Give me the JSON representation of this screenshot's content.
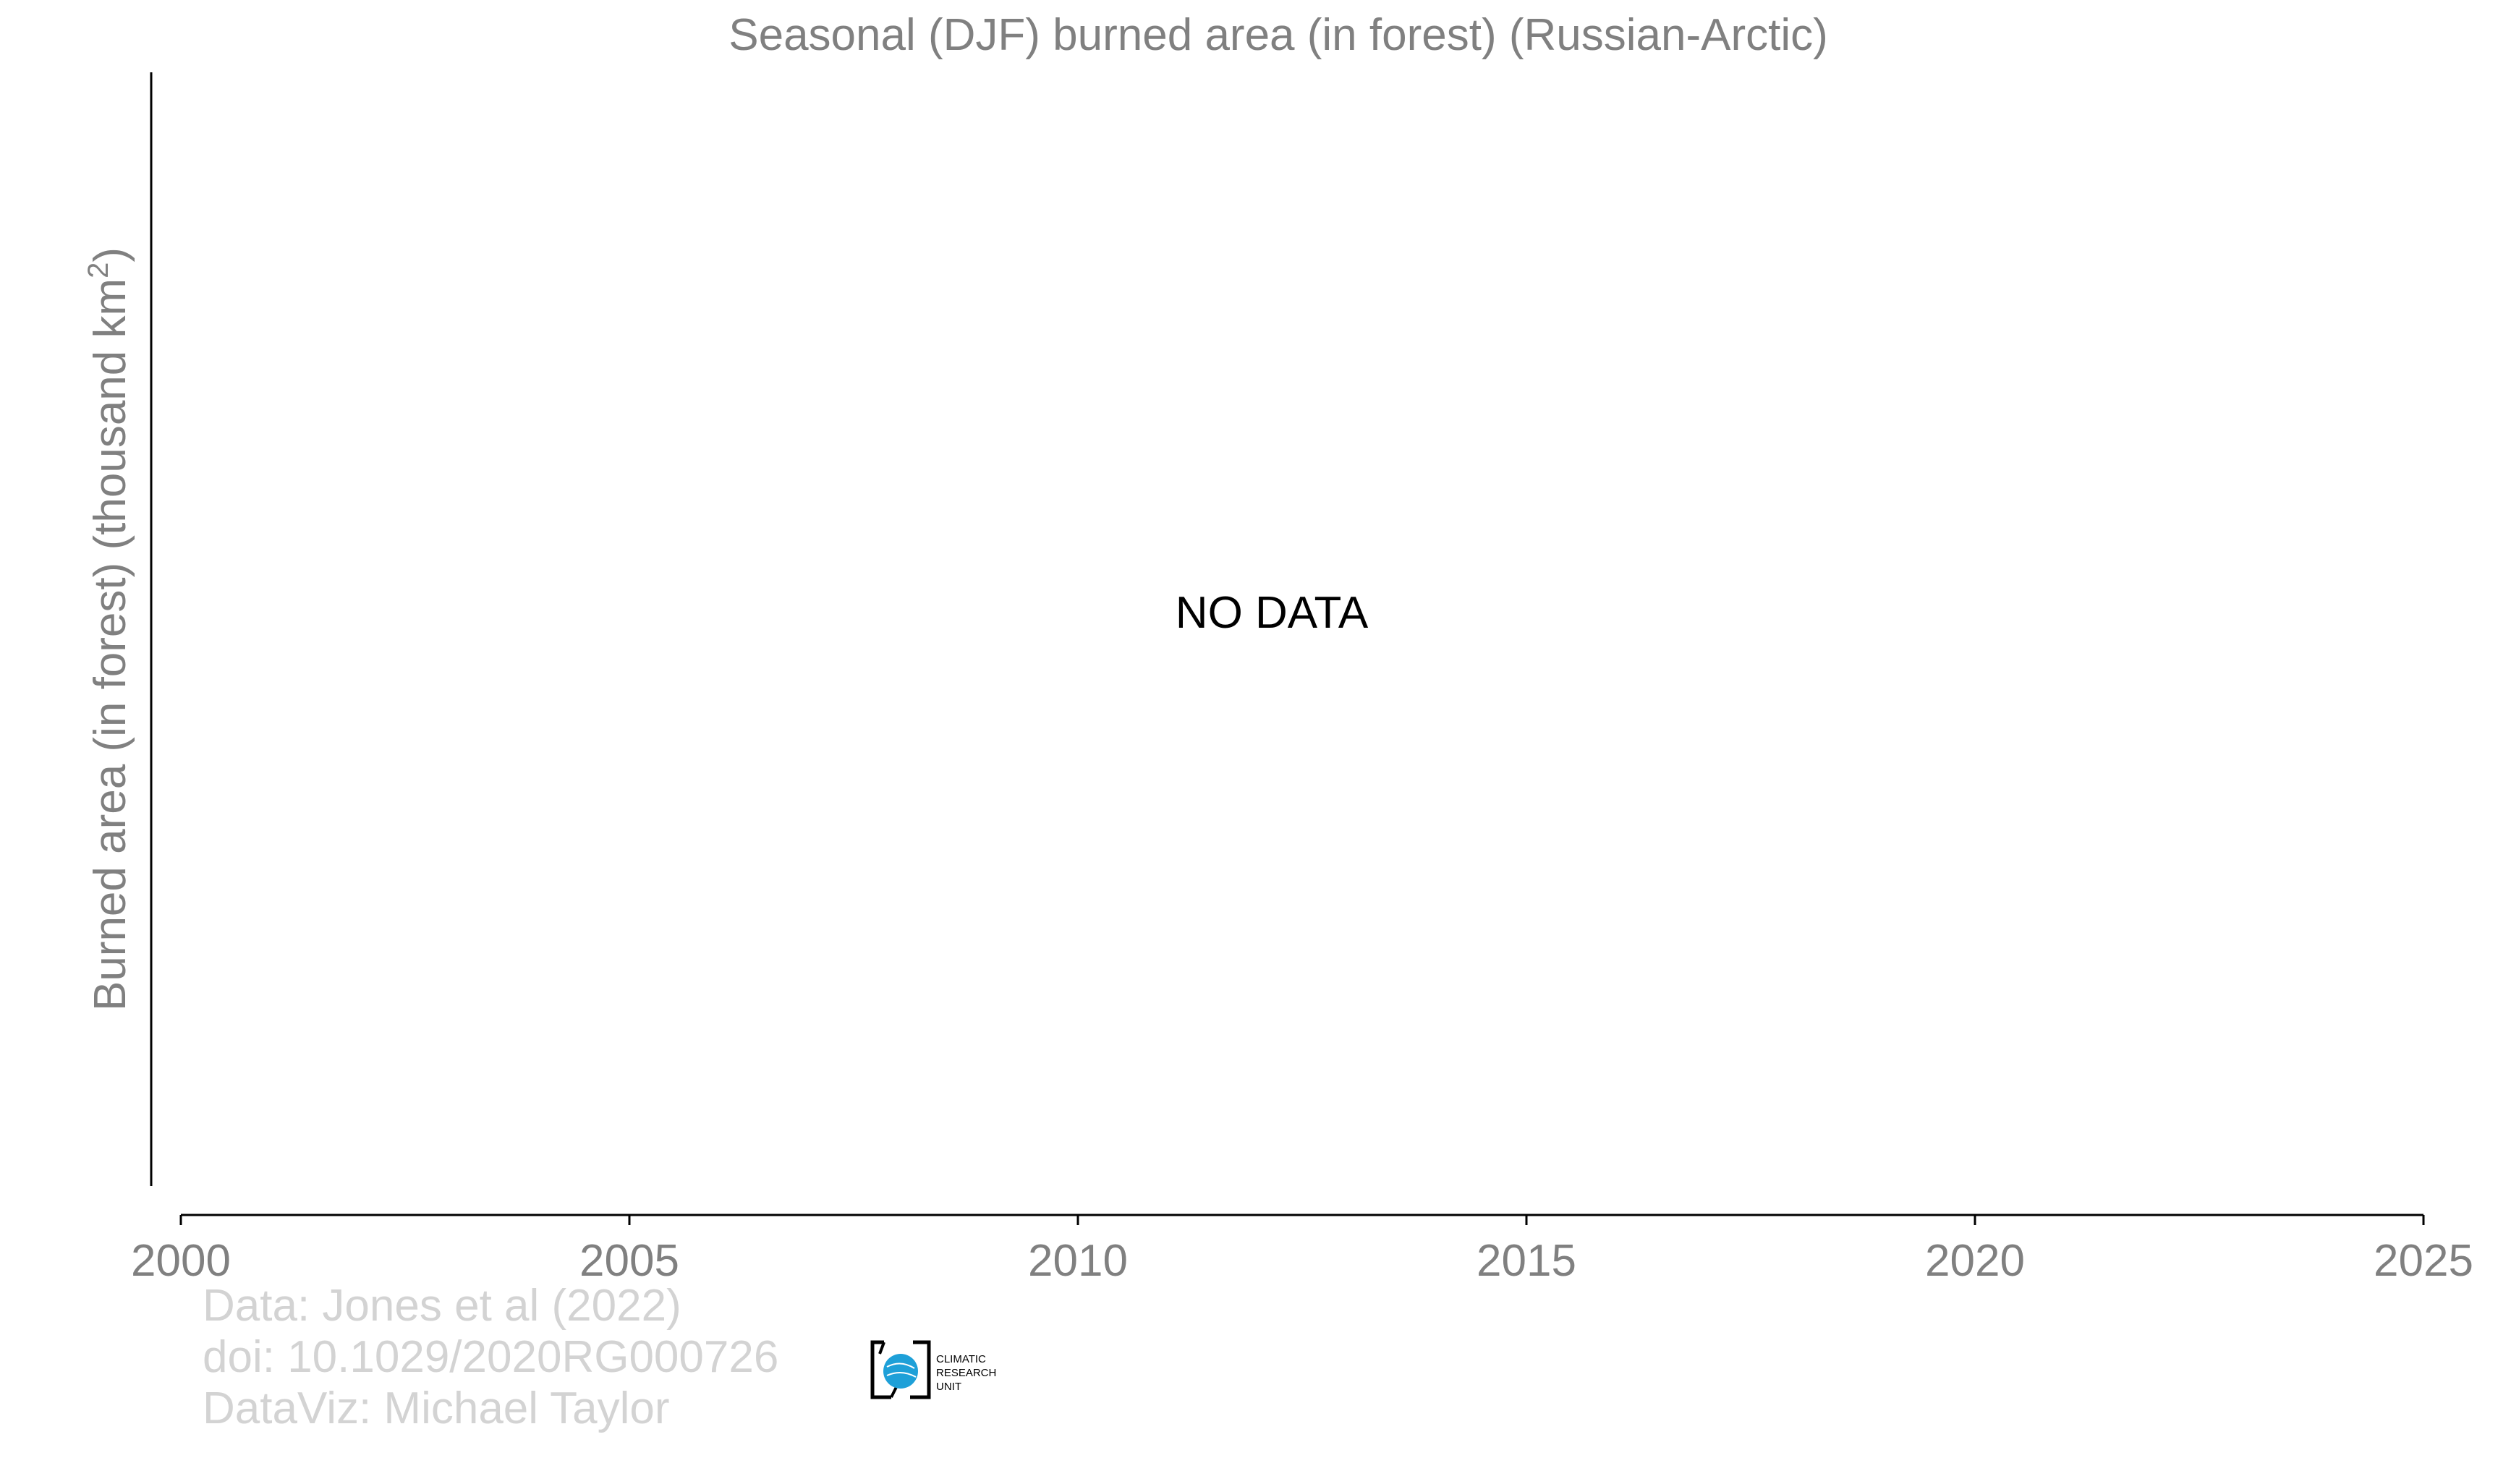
{
  "chart_data": {
    "type": "line",
    "title": "Seasonal (DJF) burned area (in forest) (Russian-Arctic)",
    "ylabel_main": "Burned area (in forest) (thousand km",
    "ylabel_superscript": "2",
    "ylabel_close": ")",
    "xlabel": "",
    "xlim": [
      2000,
      2025
    ],
    "xticks": [
      2000,
      2005,
      2010,
      2015,
      2020,
      2025
    ],
    "series": [],
    "annotation": "NO DATA",
    "grid": false,
    "legend": "none"
  },
  "credits": {
    "line1": "Data: Jones et al (2022)",
    "line2": "doi: 10.1029/2020RG000726",
    "line3": "DataViz: Michael Taylor"
  },
  "logo": {
    "line1": "CLIMATIC",
    "line2": "RESEARCH",
    "line3": "UNIT",
    "globe_color": "#1ea0d8"
  },
  "colors": {
    "title": "#808080",
    "axis_text": "#808080",
    "credits": "#d3d3d3",
    "axis_line": "#000000",
    "annotation": "#000000"
  }
}
